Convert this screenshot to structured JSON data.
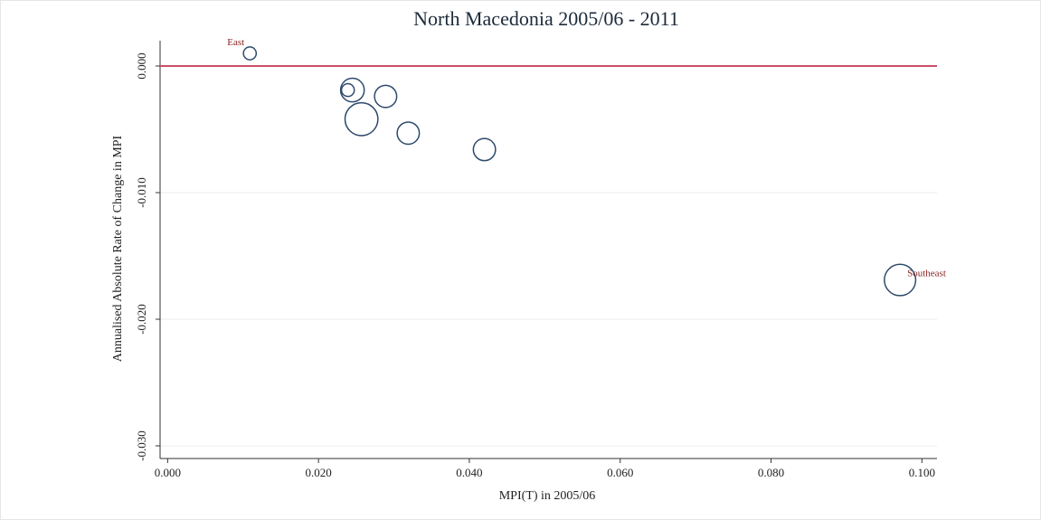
{
  "chart_data": {
    "type": "scatter",
    "title": "North Macedonia 2005/06 - 2011",
    "x_label": "MPI(T) in 2005/06",
    "y_label": "Annualised Absolute Rate of Change in MPI",
    "x": [
      0.0109,
      0.0239,
      0.0245,
      0.0289,
      0.0257,
      0.0319,
      0.042,
      0.0971
    ],
    "y": [
      0.001,
      -0.0019,
      -0.0019,
      -0.0024,
      -0.0042,
      -0.0053,
      -0.0066,
      -0.0169
    ],
    "sizes": [
      0.5,
      0.5,
      1.7,
      1.5,
      3.3,
      1.5,
      1.5,
      3.0
    ],
    "point_labels": [
      "East",
      null,
      null,
      null,
      null,
      null,
      null,
      "Southeast"
    ],
    "color": "#2e4a6b",
    "label_color": "#8b2323",
    "hline": 0,
    "hline_color": "#c9506a",
    "xlim": [
      -0.001,
      0.102
    ],
    "ylim": [
      -0.031,
      0.002
    ],
    "xticks": [
      {
        "value": 0,
        "label": "0.000"
      },
      {
        "value": 0.02,
        "label": "0.020"
      },
      {
        "value": 0.04,
        "label": "0.040"
      },
      {
        "value": 0.06,
        "label": "0.060"
      },
      {
        "value": 0.08,
        "label": "0.080"
      },
      {
        "value": 0.1,
        "label": "0.100"
      }
    ],
    "yticks": [
      {
        "value": 0,
        "label": "0.000"
      },
      {
        "value": -0.01,
        "label": "-0.010"
      },
      {
        "value": -0.02,
        "label": "-0.020"
      },
      {
        "value": -0.03,
        "label": "-0.030"
      }
    ],
    "grid": true
  }
}
